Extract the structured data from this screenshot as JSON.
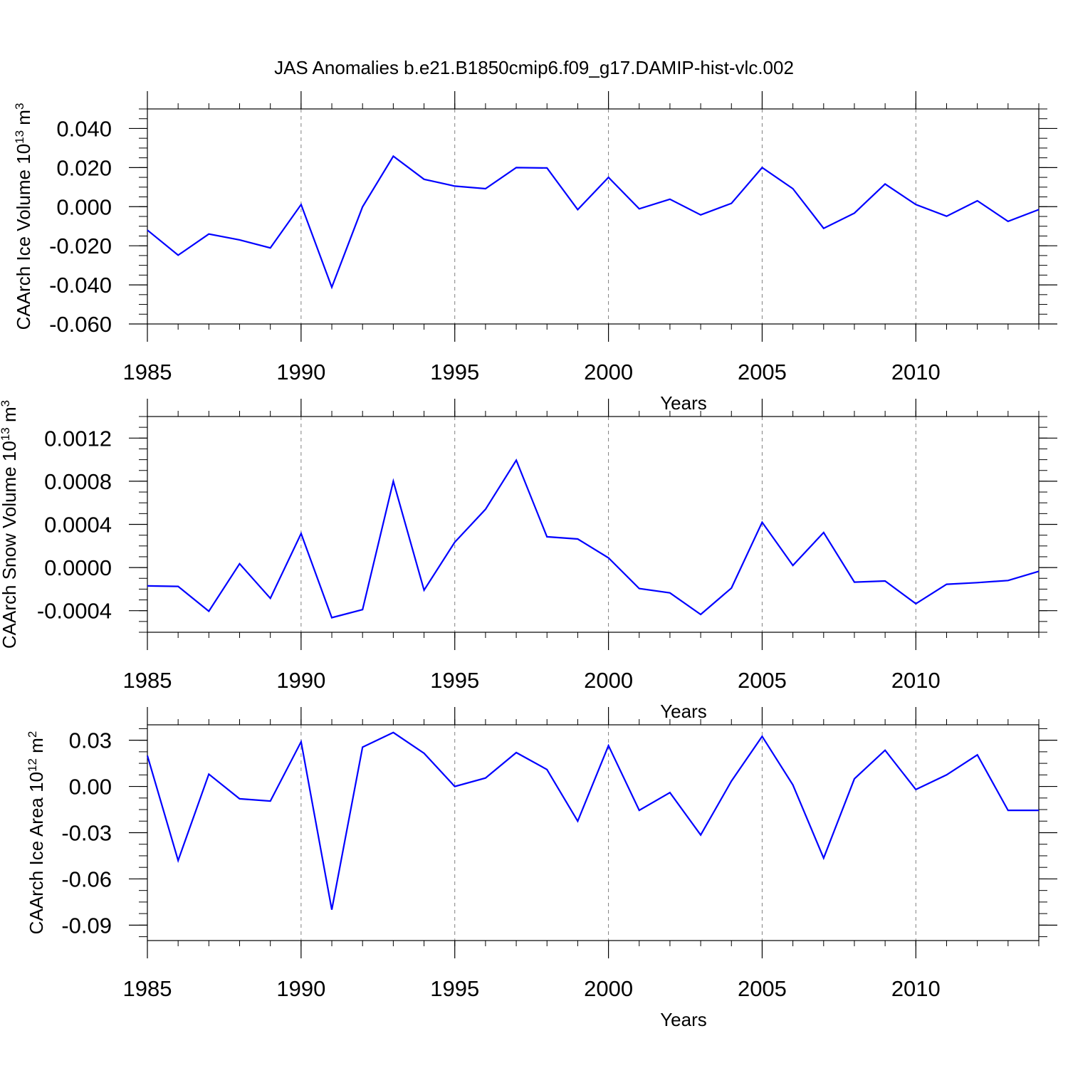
{
  "title": "JAS Anomalies b.e21.B1850cmip6.f09_g17.DAMIP-hist-vlc.002",
  "colors": {
    "line": "#0000ff",
    "axis": "#000000",
    "grid": "#808080",
    "background": "#ffffff"
  },
  "chart_data": [
    {
      "type": "line",
      "ylabel": "CAArch Ice Volume 10",
      "ylabel_exp": "13",
      "ylabel_unit": " m",
      "ylabel_unit_exp": "3",
      "xlabel": "Years",
      "xlim": [
        1985,
        2014
      ],
      "ylim": [
        -0.06,
        0.05
      ],
      "x_ticks": [
        "1985",
        "1990",
        "1995",
        "2000",
        "2005",
        "2010"
      ],
      "y_ticks": [
        -0.06,
        -0.04,
        -0.02,
        0.0,
        0.02,
        0.04
      ],
      "y_tick_labels": [
        "-0.060",
        "-0.040",
        "-0.020",
        "0.000",
        "0.020",
        "0.040"
      ],
      "y_minor_step": 0.005,
      "x": [
        1985,
        1986,
        1987,
        1988,
        1989,
        1990,
        1991,
        1992,
        1993,
        1994,
        1995,
        1996,
        1997,
        1998,
        1999,
        2000,
        2001,
        2002,
        2003,
        2004,
        2005,
        2006,
        2007,
        2008,
        2009,
        2010,
        2011,
        2012,
        2013,
        2014
      ],
      "series": [
        {
          "name": "Ice Volume",
          "values": [
            -0.012,
            -0.0248,
            -0.014,
            -0.017,
            -0.0211,
            0.0011,
            -0.0412,
            -0.0001,
            0.0258,
            0.014,
            0.0105,
            0.0092,
            0.02,
            0.0198,
            -0.0015,
            0.015,
            -0.0011,
            0.0038,
            -0.0042,
            0.0017,
            0.02,
            0.0092,
            -0.0111,
            -0.0033,
            0.0116,
            0.0011,
            -0.0049,
            0.003,
            -0.0075,
            -0.0015
          ]
        }
      ]
    },
    {
      "type": "line",
      "ylabel": "CAArch Snow Volume 10",
      "ylabel_exp": "13",
      "ylabel_unit": " m",
      "ylabel_unit_exp": "3",
      "xlabel": "Years",
      "xlim": [
        1985,
        2014
      ],
      "ylim": [
        -0.0006,
        0.0014
      ],
      "x_ticks": [
        "1985",
        "1990",
        "1995",
        "2000",
        "2005",
        "2010"
      ],
      "y_ticks": [
        -0.0004,
        0.0,
        0.0004,
        0.0008,
        0.0012
      ],
      "y_tick_labels": [
        "-0.0004",
        "0.0000",
        "0.0004",
        "0.0008",
        "0.0012"
      ],
      "y_minor_step": 0.0001,
      "x": [
        1985,
        1986,
        1987,
        1988,
        1989,
        1990,
        1991,
        1992,
        1993,
        1994,
        1995,
        1996,
        1997,
        1998,
        1999,
        2000,
        2001,
        2002,
        2003,
        2004,
        2005,
        2006,
        2007,
        2008,
        2009,
        2010,
        2011,
        2012,
        2013,
        2014
      ],
      "series": [
        {
          "name": "Snow Volume",
          "values": [
            -0.00017,
            -0.000175,
            -0.000405,
            3.5e-05,
            -0.000285,
            0.000315,
            -0.000465,
            -0.00039,
            0.0008,
            -0.00021,
            0.000235,
            0.00054,
            0.000995,
            0.000285,
            0.000265,
            9e-05,
            -0.000195,
            -0.000235,
            -0.000435,
            -0.00019,
            0.00042,
            2e-05,
            0.000325,
            -0.000135,
            -0.000125,
            -0.000335,
            -0.000155,
            -0.00014,
            -0.00012,
            -3.5e-05
          ]
        }
      ]
    },
    {
      "type": "line",
      "ylabel": "CAArch Ice Area 10",
      "ylabel_exp": "12",
      "ylabel_unit": " m",
      "ylabel_unit_exp": "2",
      "xlabel": "Years",
      "xlim": [
        1985,
        2014
      ],
      "ylim": [
        -0.1,
        0.04
      ],
      "x_ticks": [
        "1985",
        "1990",
        "1995",
        "2000",
        "2005",
        "2010"
      ],
      "y_ticks": [
        -0.09,
        -0.06,
        -0.03,
        0.0,
        0.03
      ],
      "y_tick_labels": [
        "-0.09",
        "-0.06",
        "-0.03",
        "0.00",
        "0.03"
      ],
      "y_minor_step": 0.0075,
      "x": [
        1985,
        1986,
        1987,
        1988,
        1989,
        1990,
        1991,
        1992,
        1993,
        1994,
        1995,
        1996,
        1997,
        1998,
        1999,
        2000,
        2001,
        2002,
        2003,
        2004,
        2005,
        2006,
        2007,
        2008,
        2009,
        2010,
        2011,
        2012,
        2013,
        2014
      ],
      "series": [
        {
          "name": "Ice Area",
          "values": [
            0.02,
            -0.048,
            0.008,
            -0.008,
            -0.0095,
            0.029,
            -0.08,
            0.0255,
            0.035,
            0.0215,
            0.0,
            0.0055,
            0.022,
            0.011,
            -0.0225,
            0.0265,
            -0.0155,
            -0.004,
            -0.0315,
            0.0035,
            0.0325,
            0.001,
            -0.0465,
            0.005,
            0.0235,
            -0.002,
            0.0075,
            0.0205,
            -0.0155,
            -0.0155
          ]
        }
      ]
    }
  ]
}
